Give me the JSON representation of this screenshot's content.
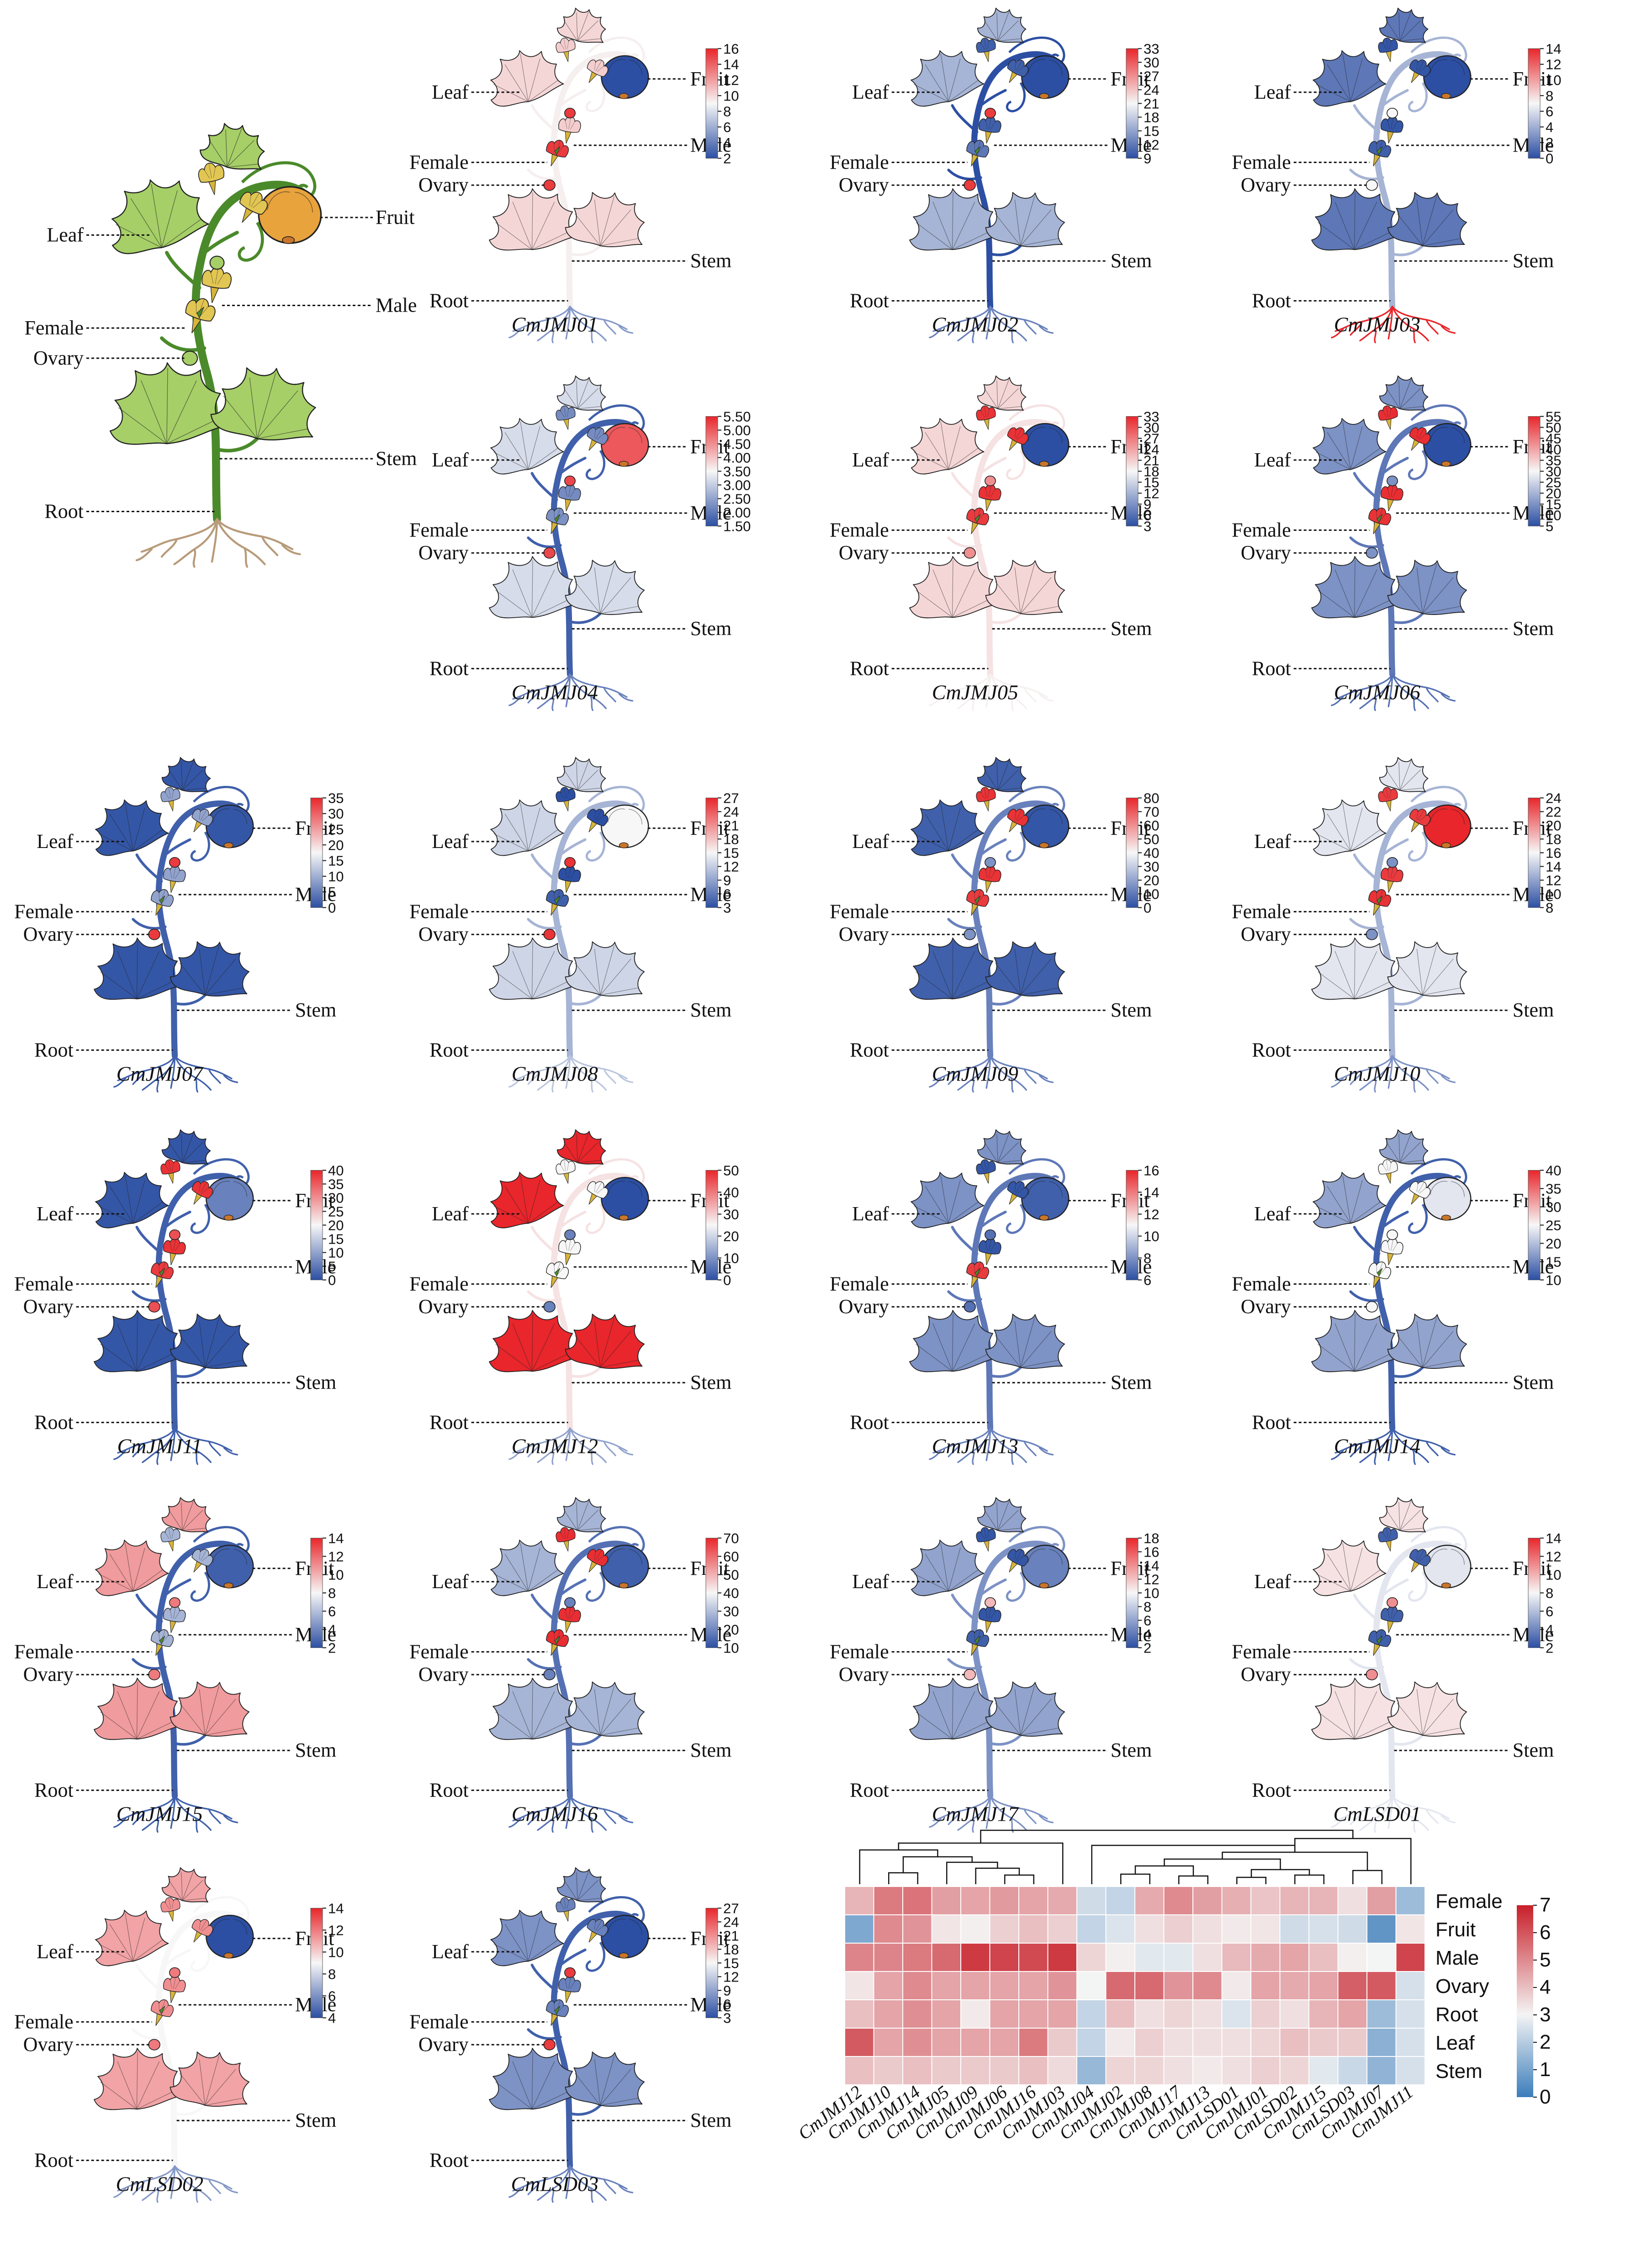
{
  "tissue_labels": [
    "Leaf",
    "Fruit",
    "Female",
    "Ovary",
    "Male",
    "Stem",
    "Root"
  ],
  "colors": {
    "low": "#2c4fa3",
    "mid": "#f7f7f7",
    "high": "#e8262b",
    "hm_low": "#3b7dbb",
    "hm_mid": "#f4f4f4",
    "hm_high": "#c81f29",
    "ref_leaf": "#a6cf67",
    "ref_fruit": "#e8a33d",
    "ref_flower": "#e2c653",
    "ref_stem": "#4a8a2a",
    "ref_root": "#b89b7a"
  },
  "reference_plant": {
    "name": ""
  },
  "genes": [
    {
      "name": "CmJMJ01",
      "ticks": [
        "16",
        "14",
        "12",
        "10",
        "8",
        "6",
        "4",
        "2"
      ],
      "c": {
        "leaf": 0.58,
        "fruit": 0.0,
        "female": 0.95,
        "ovary": 0.95,
        "male": 0.6,
        "stem": 0.52,
        "root": 0.22
      }
    },
    {
      "name": "CmJMJ02",
      "ticks": [
        "33",
        "30",
        "27",
        "24",
        "21",
        "18",
        "15",
        "12",
        "9"
      ],
      "c": {
        "leaf": 0.3,
        "fruit": 0.0,
        "female": 0.12,
        "ovary": 0.95,
        "male": 0.05,
        "stem": 0.0,
        "root": 0.15
      }
    },
    {
      "name": "CmJMJ03",
      "ticks": [
        "14",
        "12",
        "10",
        "8",
        "6",
        "4",
        "2",
        "0"
      ],
      "c": {
        "leaf": 0.12,
        "fruit": 0.0,
        "female": 0.05,
        "ovary": 0.5,
        "male": 0.02,
        "stem": 0.3,
        "root": 1.0
      }
    },
    {
      "name": "CmJMJ04",
      "ticks": [
        "5.50",
        "5.00",
        "4.50",
        "4.00",
        "3.50",
        "3.00",
        "2.50",
        "2.00",
        "1.50"
      ],
      "c": {
        "leaf": 0.42,
        "fruit": 0.88,
        "female": 0.2,
        "ovary": 0.92,
        "male": 0.18,
        "stem": 0.05,
        "root": 0.15
      }
    },
    {
      "name": "CmJMJ05",
      "ticks": [
        "33",
        "30",
        "27",
        "24",
        "21",
        "18",
        "15",
        "12",
        "9",
        "6",
        "3"
      ],
      "c": {
        "leaf": 0.58,
        "fruit": 0.0,
        "female": 0.95,
        "ovary": 0.75,
        "male": 0.97,
        "stem": 0.55,
        "root": 0.52
      }
    },
    {
      "name": "CmJMJ06",
      "ticks": [
        "55",
        "50",
        "45",
        "40",
        "35",
        "30",
        "25",
        "20",
        "15",
        "10",
        "5"
      ],
      "c": {
        "leaf": 0.2,
        "fruit": 0.0,
        "female": 0.97,
        "ovary": 0.2,
        "male": 0.98,
        "stem": 0.12,
        "root": 0.1
      }
    },
    {
      "name": "CmJMJ07",
      "ticks": [
        "35",
        "30",
        "25",
        "20",
        "15",
        "10",
        "5",
        "0"
      ],
      "c": {
        "leaf": 0.02,
        "fruit": 0.02,
        "female": 0.25,
        "ovary": 0.95,
        "male": 0.25,
        "stem": 0.05,
        "root": 0.05
      }
    },
    {
      "name": "CmJMJ08",
      "ticks": [
        "27",
        "24",
        "21",
        "18",
        "15",
        "12",
        "9",
        "6",
        "3"
      ],
      "c": {
        "leaf": 0.4,
        "fruit": 0.5,
        "female": 0.05,
        "ovary": 0.97,
        "male": 0.0,
        "stem": 0.3,
        "root": 0.35
      }
    },
    {
      "name": "CmJMJ09",
      "ticks": [
        "80",
        "70",
        "60",
        "50",
        "40",
        "30",
        "20",
        "10",
        "0"
      ],
      "c": {
        "leaf": 0.05,
        "fruit": 0.02,
        "female": 0.95,
        "ovary": 0.2,
        "male": 0.97,
        "stem": 0.15,
        "root": 0.15
      }
    },
    {
      "name": "CmJMJ10",
      "ticks": [
        "24",
        "22",
        "20",
        "18",
        "16",
        "14",
        "12",
        "10",
        "8"
      ],
      "c": {
        "leaf": 0.45,
        "fruit": 1.0,
        "female": 0.97,
        "ovary": 0.2,
        "male": 0.95,
        "stem": 0.3,
        "root": 0.2
      }
    },
    {
      "name": "CmJMJ11",
      "ticks": [
        "40",
        "35",
        "30",
        "25",
        "20",
        "15",
        "10",
        "5",
        "0"
      ],
      "c": {
        "leaf": 0.02,
        "fruit": 0.15,
        "female": 0.95,
        "ovary": 0.9,
        "male": 0.97,
        "stem": 0.05,
        "root": 0.05
      }
    },
    {
      "name": "CmJMJ12",
      "ticks": [
        "50",
        "40",
        "30",
        "20",
        "10",
        "0"
      ],
      "c": {
        "leaf": 1.0,
        "fruit": 0.0,
        "female": 0.5,
        "ovary": 0.15,
        "male": 0.5,
        "stem": 0.55,
        "root": 0.25
      }
    },
    {
      "name": "CmJMJ13",
      "ticks": [
        "16",
        "14",
        "12",
        "10",
        "8",
        "6"
      ],
      "c": {
        "leaf": 0.2,
        "fruit": 0.05,
        "female": 0.95,
        "ovary": 0.1,
        "male": 0.02,
        "stem": 0.12,
        "root": 0.15
      }
    },
    {
      "name": "CmJMJ14",
      "ticks": [
        "40",
        "35",
        "30",
        "25",
        "20",
        "15",
        "10"
      ],
      "c": {
        "leaf": 0.25,
        "fruit": 0.45,
        "female": 0.5,
        "ovary": 0.5,
        "male": 0.5,
        "stem": 0.05,
        "root": 0.05
      }
    },
    {
      "name": "CmJMJ15",
      "ticks": [
        "14",
        "12",
        "10",
        "8",
        "6",
        "4",
        "2"
      ],
      "c": {
        "leaf": 0.72,
        "fruit": 0.05,
        "female": 0.3,
        "ovary": 0.8,
        "male": 0.3,
        "stem": 0.05,
        "root": 0.05
      }
    },
    {
      "name": "CmJMJ16",
      "ticks": [
        "70",
        "60",
        "50",
        "40",
        "30",
        "20",
        "10"
      ],
      "c": {
        "leaf": 0.3,
        "fruit": 0.05,
        "female": 0.98,
        "ovary": 0.15,
        "male": 0.98,
        "stem": 0.1,
        "root": 0.1
      }
    },
    {
      "name": "CmJMJ17",
      "ticks": [
        "18",
        "16",
        "14",
        "12",
        "10",
        "8",
        "6",
        "4",
        "2"
      ],
      "c": {
        "leaf": 0.25,
        "fruit": 0.15,
        "female": 0.05,
        "ovary": 0.65,
        "male": 0.02,
        "stem": 0.2,
        "root": 0.2
      }
    },
    {
      "name": "CmLSD01",
      "ticks": [
        "14",
        "12",
        "10",
        "8",
        "6",
        "4",
        "2"
      ],
      "c": {
        "leaf": 0.55,
        "fruit": 0.45,
        "female": 0.05,
        "ovary": 0.75,
        "male": 0.05,
        "stem": 0.45,
        "root": 0.45
      }
    },
    {
      "name": "CmLSD02",
      "ticks": [
        "14",
        "12",
        "10",
        "8",
        "6",
        "4"
      ],
      "c": {
        "leaf": 0.7,
        "fruit": 0.0,
        "female": 0.75,
        "ovary": 0.8,
        "male": 0.75,
        "stem": 0.5,
        "root": 0.22
      }
    },
    {
      "name": "CmLSD03",
      "ticks": [
        "27",
        "24",
        "21",
        "18",
        "15",
        "12",
        "9",
        "6",
        "3"
      ],
      "c": {
        "leaf": 0.2,
        "fruit": 0.0,
        "female": 0.15,
        "ovary": 0.95,
        "male": 0.15,
        "stem": 0.05,
        "root": 0.15
      }
    }
  ],
  "heatmap": {
    "type": "heatmap",
    "columns": [
      "CmJMJ12",
      "CmJMJ10",
      "CmJMJ14",
      "CmJMJ05",
      "CmJMJ09",
      "CmJMJ06",
      "CmJMJ16",
      "CmJMJ03",
      "CmJMJ04",
      "CmJMJ02",
      "CmJMJ08",
      "CmJMJ17",
      "CmJMJ13",
      "CmLSD01",
      "CmJMJ01",
      "CmLSD02",
      "CmJMJ15",
      "CmLSD03",
      "CmJMJ07",
      "CmJMJ11"
    ],
    "rows": [
      "Female",
      "Fruit",
      "Male",
      "Ovary",
      "Root",
      "Leaf",
      "Stem"
    ],
    "scale_ticks": [
      "7",
      "6",
      "5",
      "4",
      "3",
      "2",
      "1",
      "0"
    ],
    "range": [
      0,
      7
    ],
    "values": [
      [
        4.2,
        5.3,
        5.4,
        4.6,
        4.5,
        4.7,
        4.5,
        4.4,
        2.4,
        2.2,
        4.4,
        5.0,
        4.6,
        4.3,
        3.9,
        4.2,
        4.2,
        3.4,
        4.6,
        1.6
      ],
      [
        1.1,
        5.0,
        4.8,
        3.3,
        3.1,
        3.7,
        4.0,
        3.7,
        2.2,
        2.6,
        3.4,
        3.7,
        3.4,
        3.2,
        3.3,
        2.4,
        2.5,
        2.4,
        0.6,
        3.3
      ],
      [
        5.1,
        5.1,
        5.3,
        5.6,
        6.5,
        6.3,
        6.2,
        6.5,
        3.6,
        3.1,
        2.7,
        2.7,
        3.4,
        4.1,
        4.4,
        4.5,
        4.0,
        3.1,
        3.0,
        6.3
      ],
      [
        3.3,
        4.5,
        5.0,
        4.5,
        4.5,
        4.5,
        4.5,
        4.8,
        3.0,
        5.6,
        5.6,
        4.8,
        5.0,
        3.2,
        4.5,
        4.4,
        4.5,
        5.8,
        5.9,
        2.5
      ],
      [
        4.0,
        4.5,
        4.9,
        4.5,
        3.2,
        4.5,
        4.5,
        4.5,
        2.2,
        4.0,
        3.4,
        3.6,
        3.4,
        2.6,
        3.7,
        3.4,
        4.2,
        4.5,
        1.6,
        2.5
      ],
      [
        5.9,
        4.5,
        4.9,
        4.5,
        4.5,
        4.5,
        5.3,
        3.8,
        2.2,
        3.2,
        3.7,
        3.4,
        3.4,
        3.4,
        3.6,
        4.0,
        3.8,
        3.8,
        1.3,
        2.5
      ],
      [
        4.0,
        3.8,
        4.0,
        3.8,
        3.8,
        3.8,
        4.0,
        3.5,
        1.5,
        3.6,
        3.6,
        3.4,
        3.2,
        3.4,
        3.7,
        3.6,
        2.7,
        2.3,
        1.4,
        2.5
      ]
    ]
  }
}
